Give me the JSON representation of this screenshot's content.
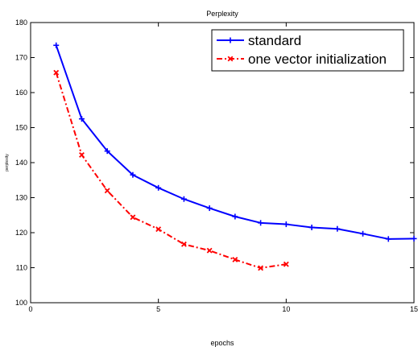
{
  "chart_data": {
    "type": "line",
    "title": "Perplexity",
    "xlabel": "epochs",
    "ylabel": "perplexity",
    "xlim": [
      0,
      15
    ],
    "ylim": [
      100,
      180
    ],
    "xticks": [
      0,
      5,
      10,
      15
    ],
    "yticks": [
      100,
      110,
      120,
      130,
      140,
      150,
      160,
      170,
      180
    ],
    "grid": false,
    "legend_position": "top-right",
    "series": [
      {
        "name": "standard",
        "color": "#0000ff",
        "line_style": "solid",
        "marker": "plus",
        "x": [
          1,
          2,
          3,
          4,
          5,
          6,
          7,
          8,
          9,
          10,
          11,
          12,
          13,
          14,
          15
        ],
        "y": [
          173.5,
          152.5,
          143.3,
          136.5,
          132.8,
          129.6,
          127.0,
          124.6,
          122.8,
          122.4,
          121.5,
          121.1,
          119.7,
          118.2,
          118.3
        ]
      },
      {
        "name": "one vector initialization",
        "color": "#ff0000",
        "line_style": "dash-dot",
        "marker": "x",
        "x": [
          1,
          2,
          3,
          4,
          5,
          6,
          7,
          8,
          9,
          10
        ],
        "y": [
          165.7,
          142.2,
          132.0,
          124.4,
          121.0,
          116.7,
          114.9,
          112.3,
          109.9,
          111.0
        ]
      }
    ]
  }
}
